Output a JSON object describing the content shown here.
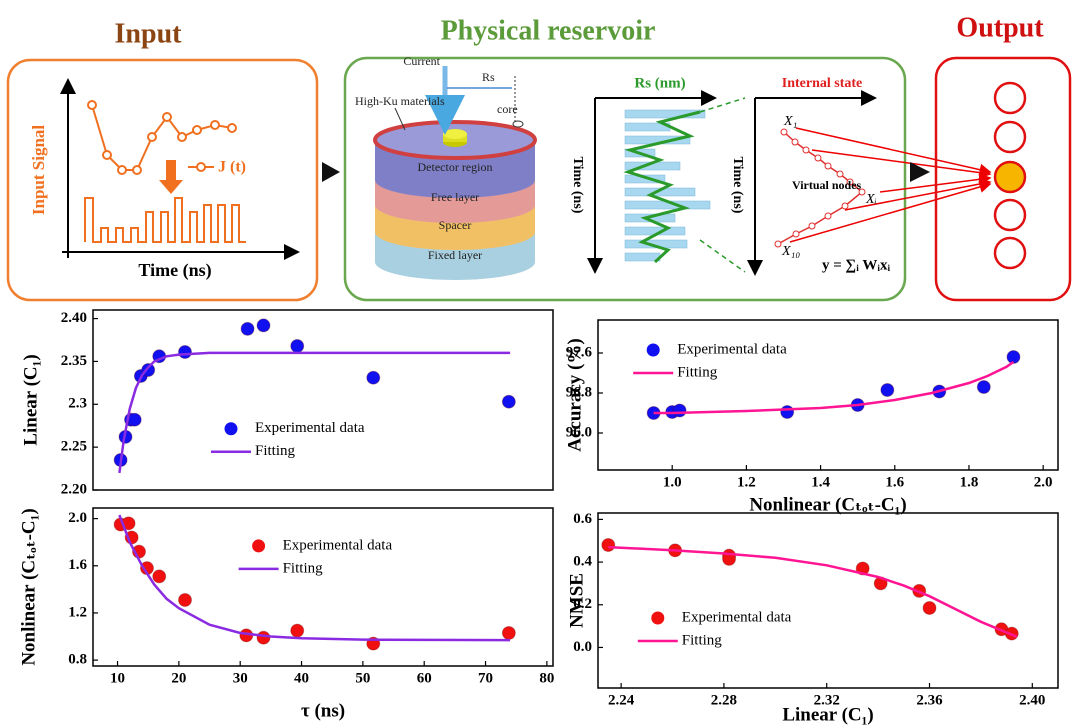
{
  "diagram": {
    "input": {
      "title": "Input",
      "ylabel": "Input Signal",
      "xlabel": "Time (ns)",
      "legend": "J (t)"
    },
    "reservoir": {
      "title": "Physical reservoir",
      "current": "Current",
      "rs": "Rs",
      "core": "core",
      "material": "High-Ku materials",
      "layers": [
        "Detector region",
        "Free layer",
        "Spacer",
        "Fixed layer"
      ],
      "rs_title": "Rs (nm)",
      "time_label": "Time (ns)",
      "state_title": "Internal state",
      "virtual_nodes": "Virtual nodes",
      "nodes": [
        "X₁",
        "Xᵢ",
        "X₁₀"
      ],
      "formula": "y = ∑ᵢ Wᵢxᵢ"
    },
    "output": {
      "title": "Output"
    }
  },
  "chart_data": [
    {
      "type": "scatter",
      "ylabel": "Linear (C₁)",
      "xlim": [
        6,
        81
      ],
      "ylim": [
        2.2,
        2.41
      ],
      "yticks": [
        {
          "value": 2.2,
          "label": "2.20"
        },
        2.25,
        2.3,
        2.35,
        {
          "value": 2.4,
          "label": "2.40"
        }
      ],
      "legend": "center",
      "series": [
        {
          "name": "Experimental data",
          "mode": "markers",
          "color": "#1010f0",
          "x": [
            10.5,
            11.3,
            12.2,
            12.8,
            13.8,
            15,
            16.8,
            21,
            31.2,
            33.8,
            39.3,
            51.7,
            73.8
          ],
          "values": [
            2.235,
            2.262,
            2.282,
            2.282,
            2.333,
            2.34,
            2.356,
            2.361,
            2.388,
            2.392,
            2.368,
            2.331,
            2.303
          ]
        },
        {
          "name": "Fitting",
          "mode": "line",
          "color": "#8a2be2",
          "x": [
            10.3,
            11,
            12,
            13,
            14,
            15,
            16,
            18,
            20,
            25,
            30,
            40,
            50,
            60,
            74
          ],
          "values": [
            2.22,
            2.258,
            2.295,
            2.319,
            2.334,
            2.343,
            2.35,
            2.356,
            2.358,
            2.36,
            2.36,
            2.36,
            2.36,
            2.36,
            2.36
          ]
        }
      ]
    },
    {
      "type": "scatter",
      "ylabel": "Nonlinear (Cₜₒₜ-C₁)",
      "xlabel": "τ (ns)",
      "xlim": [
        6,
        81
      ],
      "ylim": [
        0.75,
        2.09
      ],
      "xticks": [
        10,
        20,
        30,
        40,
        50,
        60,
        70,
        80
      ],
      "yticks": [
        0.8,
        1.2,
        1.6,
        {
          "value": 2,
          "label": "2.0"
        }
      ],
      "legend": "upper center",
      "series": [
        {
          "name": "Experimental data",
          "mode": "markers",
          "color": "#f01010",
          "x": [
            10.5,
            11.8,
            12.3,
            13.5,
            14.8,
            16.8,
            21,
            31,
            33.8,
            39.3,
            51.7,
            73.8
          ],
          "values": [
            1.95,
            1.96,
            1.84,
            1.72,
            1.58,
            1.51,
            1.31,
            1.01,
            0.99,
            1.05,
            0.94,
            1.03
          ]
        },
        {
          "name": "Fitting",
          "mode": "line",
          "color": "#8a2be2",
          "x": [
            10.3,
            12,
            14,
            16,
            18,
            20,
            25,
            30,
            35,
            40,
            50,
            60,
            74
          ],
          "values": [
            2.03,
            1.8,
            1.6,
            1.44,
            1.32,
            1.24,
            1.1,
            1.03,
            1.0,
            0.985,
            0.974,
            0.971,
            0.97
          ]
        }
      ]
    },
    {
      "type": "scatter",
      "ylabel": "Accuracy (%)",
      "xlabel": "Nonlinear (Cₜₒₜ-C₁)",
      "xlim": [
        0.8,
        2.04
      ],
      "ylim": [
        95.26,
        98.26
      ],
      "xticks": [
        {
          "value": 1,
          "label": "1.0"
        },
        1.2,
        1.4,
        1.6,
        1.8,
        {
          "value": 2,
          "label": "2.0"
        }
      ],
      "yticks": [
        {
          "value": 96,
          "label": "96.0"
        },
        96.8,
        97.6
      ],
      "legend": "upper left",
      "series": [
        {
          "name": "Experimental data",
          "mode": "markers",
          "color": "#1010f0",
          "x": [
            0.95,
            1.0,
            1.02,
            1.31,
            1.5,
            1.58,
            1.72,
            1.84,
            1.92
          ],
          "values": [
            96.4,
            96.42,
            96.45,
            96.42,
            96.56,
            96.86,
            96.83,
            96.92,
            97.52
          ]
        },
        {
          "name": "Fitting",
          "mode": "line",
          "color": "#ff1493",
          "x": [
            0.95,
            1.0,
            1.2,
            1.4,
            1.5,
            1.6,
            1.7,
            1.8,
            1.85,
            1.9,
            1.92
          ],
          "values": [
            96.4,
            96.4,
            96.44,
            96.5,
            96.56,
            96.66,
            96.8,
            97.0,
            97.14,
            97.32,
            97.42
          ]
        }
      ]
    },
    {
      "type": "scatter",
      "ylabel": "NMSE",
      "xlabel": "Linear (C₁)",
      "xlim": [
        2.231,
        2.41
      ],
      "ylim": [
        -0.19,
        0.63
      ],
      "xticks": [
        2.24,
        2.28,
        2.32,
        2.36,
        {
          "value": 2.4,
          "label": "2.40"
        }
      ],
      "yticks": [
        {
          "value": 0,
          "label": "0.0"
        },
        0.2,
        0.4,
        0.6
      ],
      "legend": "lower left",
      "series": [
        {
          "name": "Experimental data",
          "mode": "markers",
          "color": "#f01010",
          "x": [
            2.235,
            2.261,
            2.282,
            2.282,
            2.334,
            2.341,
            2.356,
            2.36,
            2.388,
            2.392
          ],
          "values": [
            0.48,
            0.455,
            0.43,
            0.415,
            0.37,
            0.3,
            0.265,
            0.185,
            0.085,
            0.065
          ]
        },
        {
          "name": "Fitting",
          "mode": "line",
          "color": "#ff1493",
          "x": [
            2.235,
            2.26,
            2.28,
            2.3,
            2.32,
            2.34,
            2.35,
            2.36,
            2.37,
            2.38,
            2.39,
            2.394
          ],
          "values": [
            0.47,
            0.455,
            0.44,
            0.42,
            0.385,
            0.33,
            0.29,
            0.24,
            0.18,
            0.12,
            0.07,
            0.05
          ]
        }
      ]
    }
  ]
}
